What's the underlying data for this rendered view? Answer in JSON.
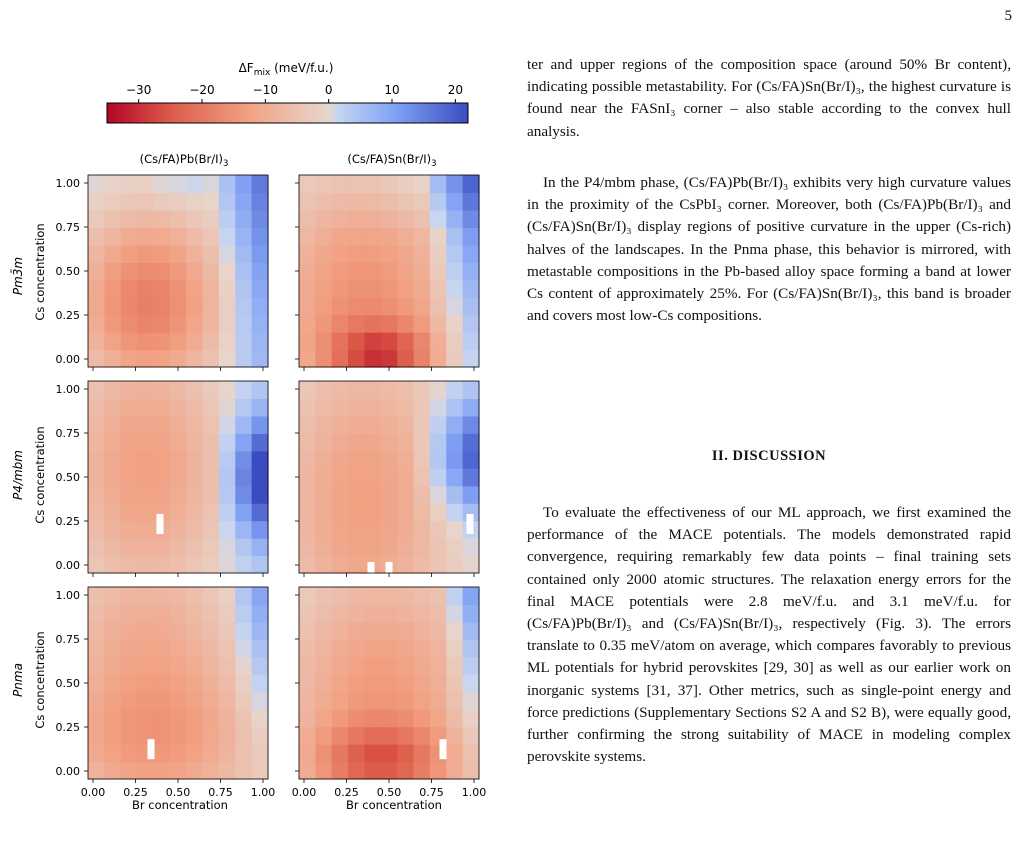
{
  "page_number": "5",
  "figure": {
    "colorbar": {
      "label": "ΔF_mix (meV/f.u.)",
      "min": -35,
      "max": 22,
      "ticks": [
        "−30",
        "−20",
        "−10",
        "0",
        "10",
        "20"
      ],
      "tick_values": [
        -30,
        -20,
        -10,
        0,
        10,
        20
      ]
    },
    "column_titles": [
      "(Cs/FA)Pb(Br/I)3",
      "(Cs/FA)Sn(Br/I)3"
    ],
    "row_labels": [
      "Pm3̄m",
      "P4/mbm",
      "Pnma"
    ],
    "ylabel": "Cs concentration",
    "xlabel": "Br concentration",
    "y_ticks": [
      "1.00",
      "0.75",
      "0.50",
      "0.25",
      "0.00"
    ],
    "x_ticks": [
      "0.00",
      "0.25",
      "0.50",
      "0.75",
      "1.00"
    ]
  },
  "chart_data": {
    "type": "heatmap",
    "grid": "11 x 11 over Br concentration [0,1] and Cs concentration [0,1]",
    "xlim": [
      0,
      1
    ],
    "ylim": [
      0,
      1
    ],
    "panels": [
      {
        "phase": "Pm3̄m",
        "compound": "(Cs/FA)Pb(Br/I)3",
        "min_meV": -20,
        "missing_points": []
      },
      {
        "phase": "Pm3̄m",
        "compound": "(Cs/FA)Sn(Br/I)3",
        "min_meV": -32,
        "missing_points": []
      },
      {
        "phase": "P4/mbm",
        "compound": "(Cs/FA)Pb(Br/I)3",
        "min_meV": -15,
        "missing_points": [
          [
            0.4,
            0.25
          ]
        ]
      },
      {
        "phase": "P4/mbm",
        "compound": "(Cs/FA)Sn(Br/I)3",
        "min_meV": -14,
        "missing_points": [
          [
            0.4,
            0.0
          ],
          [
            0.5,
            0.0
          ],
          [
            0.95,
            0.25
          ]
        ]
      },
      {
        "phase": "Pnma",
        "compound": "(Cs/FA)Pb(Br/I)3",
        "min_meV": -20,
        "missing_points": [
          [
            0.35,
            0.15
          ]
        ]
      },
      {
        "phase": "Pnma",
        "compound": "(Cs/FA)Sn(Br/I)3",
        "min_meV": -30,
        "missing_points": [
          [
            0.8,
            0.15
          ]
        ]
      }
    ]
  },
  "text": {
    "p1": "ter and upper regions of the composition space (around 50% Br content), indicating possible metastability. For (Cs/FA)Sn(Br/I)₃, the highest curvature is found near the FASnI₃ corner – also stable according to the convex hull analysis.",
    "p2": "In the P4/mbm phase, (Cs/FA)Pb(Br/I)₃ exhibits very high curvature values in the proximity of the CsPbI₃ corner. Moreover, both (Cs/FA)Pb(Br/I)₃ and (Cs/FA)Sn(Br/I)₃ display regions of positive curvature in the upper (Cs-rich) halves of the landscapes. In the Pnma phase, this behavior is mirrored, with metastable compositions in the Pb-based alloy space forming a band at lower Cs content of approximately 25%. For (Cs/FA)Sn(Br/I)₃, this band is broader and covers most low-Cs compositions.",
    "heading": "II.   DISCUSSION",
    "p3": "To evaluate the effectiveness of our ML approach, we first examined the performance of the MACE potentials. The models demonstrated rapid convergence, requiring remarkably few data points – final training sets contained only 2000 atomic structures. The relaxation energy errors for the final MACE potentials were 2.8 meV/f.u. and 3.1 meV/f.u. for (Cs/FA)Pb(Br/I)₃ and (Cs/FA)Sn(Br/I)₃, respectively (Fig. 3). The errors translate to 0.35 meV/atom on average, which compares favorably to previous ML potentials for hybrid perovskites [29, 30] as well as our earlier work on inorganic systems [31, 37]. Other metrics, such as single-point energy and force predictions (Supplementary Sections S2 A and S2 B), were equally good, further confirming the strong suitability of MACE in modeling complex perovskite systems."
  }
}
